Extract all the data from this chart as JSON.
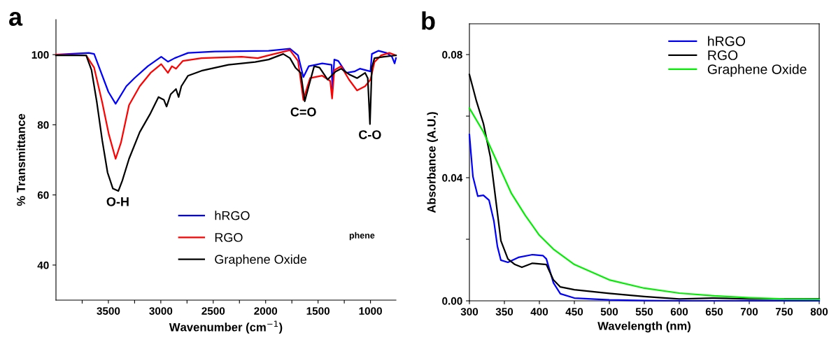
{
  "chart_data": [
    {
      "type": "line",
      "xlabel": "Wavenumber (cm$^{−1}$)",
      "ylabel": "% Transmittance",
      "xlim": [
        4000,
        757
      ],
      "ylim": [
        30,
        110
      ],
      "xticks": [
        {
          "value": 3750,
          "label": null
        },
        3500,
        {
          "value": 3250,
          "label": null
        },
        3000,
        {
          "value": 2750,
          "label": null
        },
        2500,
        {
          "value": 2250,
          "label": null
        },
        2000,
        {
          "value": 1750,
          "label": null
        },
        1500,
        {
          "value": 1250,
          "label": null
        },
        1000
      ],
      "yticks": [
        40,
        60,
        80,
        100
      ],
      "grid": false,
      "legend": "bottom",
      "line_style": "solid",
      "marker": "none",
      "annotations": [
        "a",
        "phene",
        {
          "text": "O-H",
          "x": 3410,
          "y": 61.1
        },
        {
          "text": "C=O",
          "x": 1640,
          "y": 86.7
        },
        {
          "text": "C-O",
          "x": 1005,
          "y": 80.2
        }
      ],
      "series": [
        {
          "name": "hRGO",
          "color": "#0000ff",
          "x": [
            4000,
            3687,
            3636,
            3500,
            3431,
            3329,
            3252,
            3124,
            2996,
            2932,
            2868,
            2740,
            2484,
            1972,
            1768,
            1691,
            1640,
            1589,
            1460,
            1371,
            1363,
            1345,
            1307,
            1232,
            1153,
            1101,
            1000,
            987,
            923,
            847,
            795,
            770,
            757
          ],
          "values": [
            100,
            100.5,
            100.2,
            89.4,
            86.0,
            91,
            93.3,
            96.7,
            99.4,
            98,
            99,
            100.5,
            100.9,
            101.1,
            101.7,
            99.8,
            93.6,
            96.7,
            97.5,
            97.1,
            90.2,
            98.6,
            98.2,
            94.8,
            95.2,
            96,
            95.2,
            100.2,
            101.1,
            100.5,
            99.4,
            97.5,
            99
          ]
        },
        {
          "name": "RGO",
          "color": "#ff0000",
          "x": [
            4000,
            3712,
            3636,
            3559,
            3495,
            3431,
            3380,
            3303,
            3201,
            3098,
            2996,
            2932,
            2894,
            2855,
            2791,
            2612,
            2228,
            2075,
            1972,
            1768,
            1691,
            1640,
            1601,
            1576,
            1460,
            1384,
            1366,
            1345,
            1281,
            1205,
            1128,
            1051,
            1000,
            962,
            898,
            821,
            757
          ],
          "values": [
            100,
            99.8,
            96.3,
            86.4,
            77.2,
            70.3,
            74.9,
            85.6,
            91,
            94.8,
            97.3,
            94.8,
            96.7,
            96,
            98.2,
            99,
            99.4,
            99,
            99.8,
            101.3,
            98.2,
            87.1,
            91,
            93.3,
            94,
            92.5,
            87.5,
            95.6,
            96.7,
            92.9,
            89.8,
            91,
            92.9,
            97.9,
            99.8,
            100.5,
            99.8
          ]
        },
        {
          "name": "Graphene Oxide",
          "color": "#000000",
          "x": [
            4000,
            3712,
            3661,
            3610,
            3559,
            3508,
            3457,
            3405,
            3367,
            3303,
            3201,
            3098,
            3022,
            2970,
            2945,
            2906,
            2855,
            2830,
            2804,
            2740,
            2612,
            2356,
            2100,
            1972,
            1832,
            1768,
            1716,
            1665,
            1627,
            1589,
            1537,
            1486,
            1409,
            1332,
            1281,
            1205,
            1128,
            1051,
            1026,
            1005,
            987,
            962,
            872,
            757
          ],
          "values": [
            99.8,
            99.8,
            95.6,
            86.4,
            75.6,
            66.4,
            61.8,
            61.1,
            64.1,
            70.3,
            77.9,
            83.3,
            87.9,
            87.1,
            85.2,
            88.7,
            90.2,
            87.9,
            91,
            94,
            95.4,
            97.1,
            97.9,
            98.6,
            100.2,
            99,
            96.3,
            94.8,
            86.7,
            91,
            96.7,
            96.3,
            92.9,
            95.2,
            96,
            94.4,
            93.3,
            94.8,
            93.3,
            80.2,
            96.3,
            99,
            99.4,
            99.8
          ]
        }
      ]
    },
    {
      "type": "line",
      "xlabel": "Wavelength (nm)",
      "ylabel": "Absorbance (A.U.)",
      "xlim": [
        300,
        800
      ],
      "ylim": [
        0,
        0.09
      ],
      "xticks": [
        300,
        350,
        400,
        450,
        500,
        550,
        600,
        650,
        700,
        750,
        800
      ],
      "yticks": [
        {
          "value": 0,
          "label": "0.00"
        },
        {
          "value": 0.02,
          "label": null
        },
        0.04,
        {
          "value": 0.06,
          "label": null
        },
        0.08
      ],
      "grid": false,
      "legend": "top right",
      "line_style": "solid",
      "marker": "none",
      "annotations": [
        "b"
      ],
      "series": [
        {
          "name": "hRGO",
          "color": "#0000ff",
          "x": [
            300,
            305,
            312,
            320,
            328,
            335,
            340,
            345,
            355,
            370,
            390,
            405,
            410,
            420,
            430,
            450,
            500,
            550,
            600,
            800
          ],
          "values": [
            0.054,
            0.0404,
            0.034,
            0.0343,
            0.0327,
            0.0259,
            0.0177,
            0.0132,
            0.0125,
            0.0141,
            0.015,
            0.0147,
            0.0136,
            0.0059,
            0.0023,
            0.0009,
            0.0003,
            0.0001,
            0,
            0
          ]
        },
        {
          "name": "RGO",
          "color": "#000000",
          "x": [
            300,
            310,
            320,
            330,
            340,
            345,
            355,
            365,
            375,
            390,
            410,
            420,
            430,
            450,
            500,
            550,
            600,
            650,
            700,
            800
          ],
          "values": [
            0.0735,
            0.0649,
            0.0576,
            0.0467,
            0.0286,
            0.0195,
            0.0136,
            0.0118,
            0.0109,
            0.0122,
            0.0118,
            0.0068,
            0.0045,
            0.0036,
            0.0024,
            0.0014,
            0.0006,
            0.0009,
            0.0006,
            0.0006
          ]
        },
        {
          "name": "Graphene Oxide",
          "color": "#00ee00",
          "x": [
            300,
            320,
            340,
            360,
            380,
            400,
            420,
            450,
            500,
            550,
            600,
            650,
            700,
            750,
            800
          ],
          "values": [
            0.0626,
            0.0549,
            0.0449,
            0.0349,
            0.0277,
            0.0213,
            0.0168,
            0.0118,
            0.0068,
            0.0041,
            0.0025,
            0.0016,
            0.001,
            0.0006,
            0.0005
          ]
        }
      ]
    }
  ]
}
